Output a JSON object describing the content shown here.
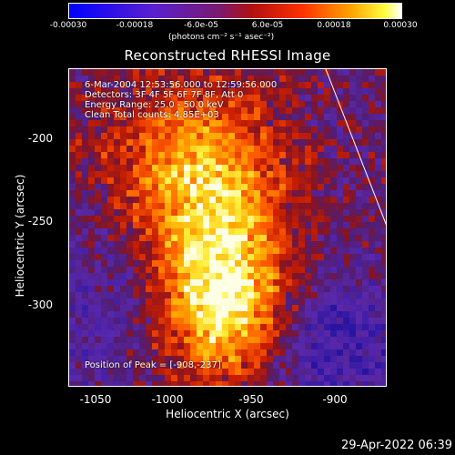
{
  "colorbar": {
    "ticks": [
      "-0.00030",
      "-0.00018",
      "-6.0e-05",
      "6.0e-05",
      "0.00018",
      "0.00030"
    ],
    "units": "(photons cm⁻² s⁻¹ asec⁻²)"
  },
  "chart_data": {
    "type": "heatmap",
    "title": "Reconstructed RHESSI Image",
    "xlabel": "Heliocentric X (arcsec)",
    "ylabel": "Heliocentric Y (arcsec)",
    "xticks": [
      "-1050",
      "-1000",
      "-950",
      "-900"
    ],
    "yticks": [
      "-200",
      "-250",
      "-300"
    ],
    "xlim": [
      -1068,
      -929
    ],
    "ylim": [
      -349,
      -165
    ],
    "clim": [
      -0.0003,
      0.0003
    ],
    "colormap": "blue-purple-red-yellow-white",
    "info_lines": [
      "6-Mar-2004 12:53:56.000 to 12:59:56.000",
      "Detectors: 3F 4F 5F 6F 7F 8F, Att 0",
      "Energy Range: 25.0 - 50.0 keV",
      "Clean     Total counts: 4.85E+03"
    ],
    "peak_label": "Position of Peak = [-908,-237]",
    "peak": [
      -908,
      -237
    ],
    "limb_line": [
      [
        -956,
        -165
      ],
      [
        -902,
        -349
      ]
    ]
  },
  "footer": {
    "date": "29-Apr-2022 06:39"
  }
}
